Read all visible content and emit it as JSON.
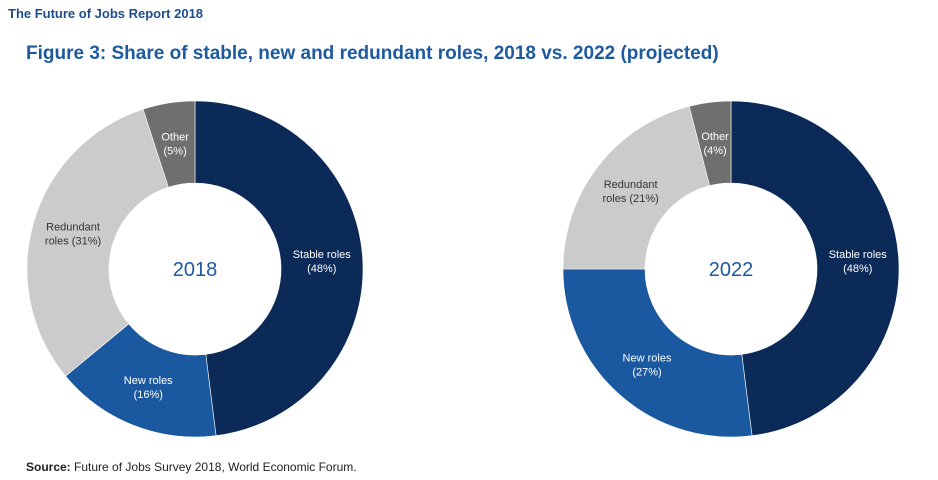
{
  "header": {
    "report_title": "The Future of Jobs Report 2018",
    "figure_title": "Figure 3: Share of stable, new and redundant roles, 2018 vs. 2022 (projected)"
  },
  "source": {
    "label": "Source:",
    "text": "Future of Jobs Survey 2018, World Economic Forum."
  },
  "colors": {
    "stable": "#0c2a57",
    "new": "#1a58a0",
    "redundant": "#cbcbcb",
    "other": "#6f6f6f",
    "center_label": "#1e5aa0"
  },
  "chart_data": [
    {
      "type": "pie",
      "variant": "donut",
      "center_label": "2018",
      "slices": [
        {
          "key": "stable",
          "label_lines": [
            "Stable roles",
            "(48%)"
          ],
          "value": 48,
          "color": "#0c2a57",
          "text_color": "#ffffff"
        },
        {
          "key": "new",
          "label_lines": [
            "New roles",
            "(16%)"
          ],
          "value": 16,
          "color": "#1a58a0",
          "text_color": "#ffffff"
        },
        {
          "key": "redundant",
          "label_lines": [
            "Redundant",
            "roles (31%)"
          ],
          "value": 31,
          "color": "#cbcbcb",
          "text_color": "#333333"
        },
        {
          "key": "other",
          "label_lines": [
            "Other",
            "(5%)"
          ],
          "value": 5,
          "color": "#6f6f6f",
          "text_color": "#ffffff"
        }
      ]
    },
    {
      "type": "pie",
      "variant": "donut",
      "center_label": "2022",
      "slices": [
        {
          "key": "stable",
          "label_lines": [
            "Stable roles",
            "(48%)"
          ],
          "value": 48,
          "color": "#0c2a57",
          "text_color": "#ffffff"
        },
        {
          "key": "new",
          "label_lines": [
            "New roles",
            "(27%)"
          ],
          "value": 27,
          "color": "#1a58a0",
          "text_color": "#ffffff"
        },
        {
          "key": "redundant",
          "label_lines": [
            "Redundant",
            "roles (21%)"
          ],
          "value": 21,
          "color": "#cbcbcb",
          "text_color": "#333333"
        },
        {
          "key": "other",
          "label_lines": [
            "Other",
            "(4%)"
          ],
          "value": 4,
          "color": "#6f6f6f",
          "text_color": "#ffffff"
        }
      ]
    }
  ]
}
